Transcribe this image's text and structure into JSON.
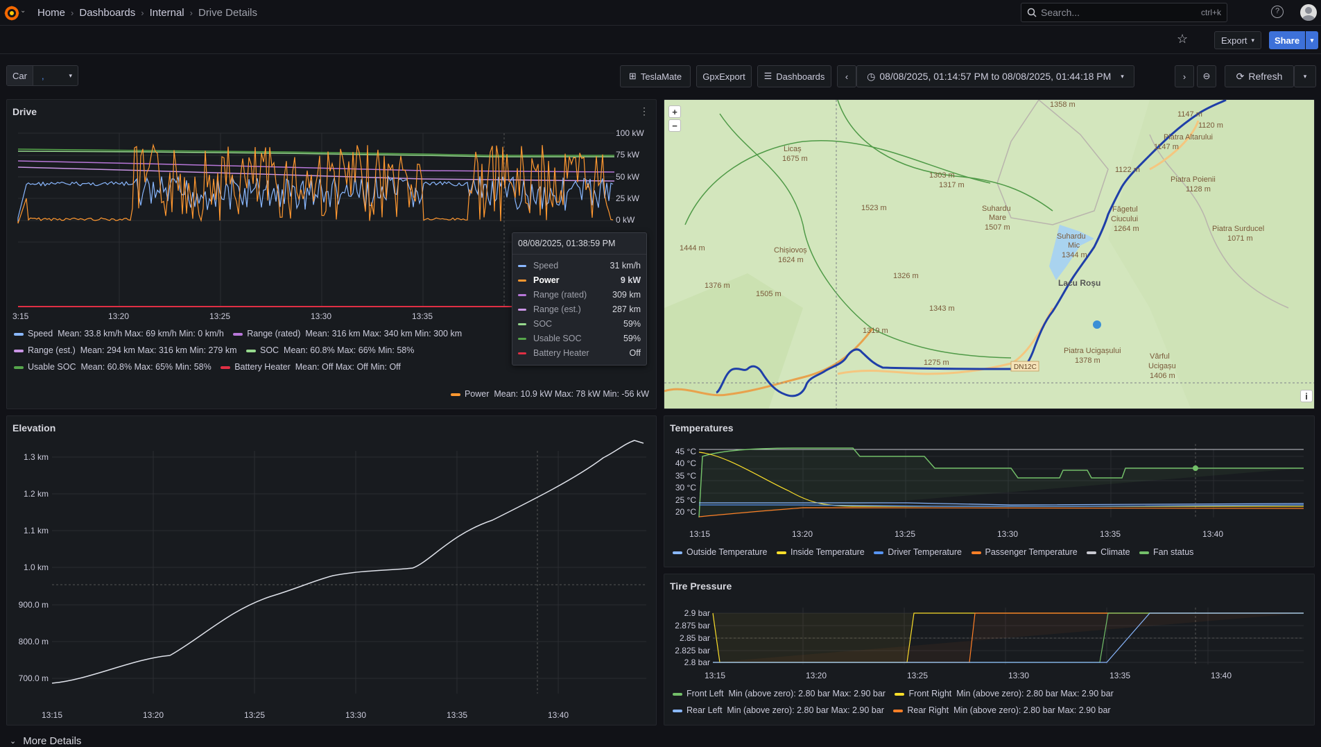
{
  "breadcrumb": [
    "Home",
    "Dashboards",
    "Internal",
    "Drive Details"
  ],
  "search": {
    "placeholder": "Search...",
    "shortcut": "ctrl+k"
  },
  "actions": {
    "export": "Export",
    "share": "Share"
  },
  "variables": {
    "car_label": "Car",
    "car_value": ","
  },
  "toolbar": {
    "teslamate": "TeslaMate",
    "gpxexport": "GpxExport",
    "dashboards": "Dashboards",
    "time_range": "08/08/2025, 01:14:57 PM to 08/08/2025, 01:44:18 PM",
    "refresh": "Refresh"
  },
  "drive_panel": {
    "title": "Drive",
    "y_ticks": [
      "100 kW",
      "75 kW",
      "50 kW",
      "25 kW",
      "0 kW"
    ],
    "x_ticks": [
      "3:15",
      "13:20",
      "13:25",
      "13:30",
      "13:35"
    ],
    "legend": [
      {
        "name": "Speed",
        "stats": "Mean: 33.8 km/h   Max: 69 km/h   Min: 0 km/h",
        "color": "#8ab8ff"
      },
      {
        "name": "Range (rated)",
        "stats": "Mean: 316 km   Max: 340 km   Min: 300 km",
        "color": "#b877d9"
      },
      {
        "name": "Range (est.)",
        "stats": "Mean: 294 km   Max: 316 km   Min: 279 km",
        "color": "#ca95e5"
      },
      {
        "name": "SOC",
        "stats": "Mean: 60.8%   Max: 66%   Min: 58%",
        "color": "#96d98d"
      },
      {
        "name": "Usable SOC",
        "stats": "Mean: 60.8%   Max: 65%   Min: 58%",
        "color": "#56a64b"
      },
      {
        "name": "Battery Heater",
        "stats": "Mean: Off   Max: Off   Min: Off",
        "color": "#e02f44"
      },
      {
        "name": "Power",
        "stats": "Mean: 10.9 kW   Max: 78 kW   Min: -56 kW",
        "color": "#ff9830"
      }
    ],
    "tooltip": {
      "time": "08/08/2025, 01:38:59 PM",
      "rows": [
        {
          "name": "Speed",
          "value": "31 km/h",
          "color": "#8ab8ff"
        },
        {
          "name": "Power",
          "value": "9 kW",
          "color": "#ff9830"
        },
        {
          "name": "Range (rated)",
          "value": "309 km",
          "color": "#b877d9"
        },
        {
          "name": "Range (est.)",
          "value": "287 km",
          "color": "#ca95e5"
        },
        {
          "name": "SOC",
          "value": "59%",
          "color": "#96d98d"
        },
        {
          "name": "Usable SOC",
          "value": "59%",
          "color": "#56a64b"
        },
        {
          "name": "Battery Heater",
          "value": "Off",
          "color": "#e02f44"
        }
      ]
    }
  },
  "map": {
    "zoom_in": "+",
    "zoom_out": "−",
    "info": "i",
    "labels": [
      "1358 m",
      "1147 m",
      "1120 m",
      "Piatra Altarului",
      "1147 m",
      "Licaș",
      "1675 m",
      "1122 m",
      "Piatra Poienii",
      "1128 m",
      "1303 m",
      "1317 m",
      "Suhardu",
      "Mare",
      "1507 m",
      "1523 m",
      "Suhardu",
      "Mic",
      "1344 m",
      "Făgetul",
      "Ciucului",
      "1264 m",
      "Piatra Surducel",
      "1071 m",
      "1444 m",
      "Chișiovoș",
      "1624 m",
      "1326 m",
      "Lacu Roșu",
      "1376 m",
      "1505 m",
      "1343 m",
      "1319 m",
      "Piatra Ucigașului",
      "1378 m",
      "Vârful",
      "Ucigașu",
      "1406 m",
      "1275 m",
      "DN12C"
    ]
  },
  "elevation_panel": {
    "title": "Elevation",
    "y_ticks": [
      "1.3 km",
      "1.2 km",
      "1.1 km",
      "1.0 km",
      "900.0 m",
      "800.0 m",
      "700.0 m"
    ],
    "x_ticks": [
      "13:15",
      "13:20",
      "13:25",
      "13:30",
      "13:35",
      "13:40"
    ]
  },
  "temperatures_panel": {
    "title": "Temperatures",
    "y_ticks": [
      "45 °C",
      "40 °C",
      "35 °C",
      "30 °C",
      "25 °C",
      "20 °C"
    ],
    "x_ticks": [
      "13:15",
      "13:20",
      "13:25",
      "13:30",
      "13:35",
      "13:40"
    ],
    "legend": [
      {
        "name": "Outside Temperature",
        "color": "#8ab8ff"
      },
      {
        "name": "Inside Temperature",
        "color": "#fade2a"
      },
      {
        "name": "Driver Temperature",
        "color": "#5794f2"
      },
      {
        "name": "Passenger Temperature",
        "color": "#ff7f27"
      },
      {
        "name": "Climate",
        "color": "#c8c9d1"
      },
      {
        "name": "Fan status",
        "color": "#73bf69"
      }
    ]
  },
  "tire_panel": {
    "title": "Tire Pressure",
    "y_ticks": [
      "2.9 bar",
      "2.875 bar",
      "2.85 bar",
      "2.825 bar",
      "2.8 bar"
    ],
    "x_ticks": [
      "13:15",
      "13:20",
      "13:25",
      "13:30",
      "13:35",
      "13:40"
    ],
    "legend": [
      {
        "name": "Front Left",
        "stats": "Min (above zero): 2.80 bar   Max: 2.90 bar",
        "color": "#73bf69"
      },
      {
        "name": "Front Right",
        "stats": "Min (above zero): 2.80 bar   Max: 2.90 bar",
        "color": "#fade2a"
      },
      {
        "name": "Rear Left",
        "stats": "Min (above zero): 2.80 bar   Max: 2.90 bar",
        "color": "#8ab8ff"
      },
      {
        "name": "Rear Right",
        "stats": "Min (above zero): 2.80 bar   Max: 2.90 bar",
        "color": "#ff7f27"
      }
    ]
  },
  "more_details": "More Details"
}
